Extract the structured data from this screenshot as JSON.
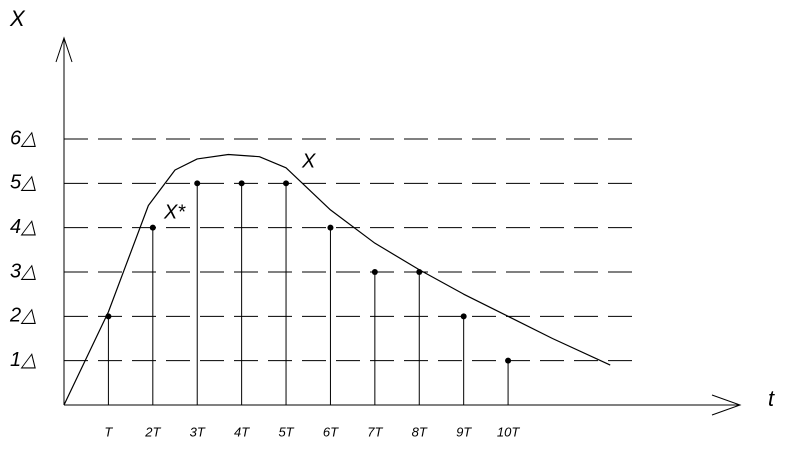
{
  "chart_data": {
    "type": "stem",
    "x_label": "t",
    "y_label": "X",
    "xlim": [
      0,
      15.2
    ],
    "ylim": [
      0,
      8.3
    ],
    "xticks": [
      {
        "value": 1,
        "label": "T"
      },
      {
        "value": 2,
        "label": "2T"
      },
      {
        "value": 3,
        "label": "3T"
      },
      {
        "value": 4,
        "label": "4T"
      },
      {
        "value": 5,
        "label": "5T"
      },
      {
        "value": 6,
        "label": "6T"
      },
      {
        "value": 7,
        "label": "7T"
      },
      {
        "value": 8,
        "label": "8T"
      },
      {
        "value": 9,
        "label": "9T"
      },
      {
        "value": 10,
        "label": "10T"
      }
    ],
    "yticks": [
      {
        "value": 1,
        "label": "1△"
      },
      {
        "value": 2,
        "label": "2△"
      },
      {
        "value": 3,
        "label": "3△"
      },
      {
        "value": 4,
        "label": "4△"
      },
      {
        "value": 5,
        "label": "5△"
      },
      {
        "value": 6,
        "label": "6△"
      }
    ],
    "grid": true,
    "series": [
      {
        "name": "X",
        "type": "line",
        "color": "#000000",
        "x": [
          0,
          1,
          1.9,
          2.5,
          3,
          3.7,
          4.4,
          5,
          6,
          7,
          8,
          9,
          10,
          11,
          12.3
        ],
        "values": [
          0,
          2.1,
          4.5,
          5.3,
          5.55,
          5.65,
          5.6,
          5.35,
          4.4,
          3.65,
          3.05,
          2.5,
          2.0,
          1.5,
          0.9
        ]
      },
      {
        "name": "X*",
        "type": "stem",
        "color": "#000000",
        "x": [
          1,
          2,
          3,
          4,
          5,
          6,
          7,
          8,
          9,
          10
        ],
        "values": [
          2,
          4,
          5,
          5,
          5,
          4,
          3,
          3,
          2,
          1
        ]
      }
    ]
  }
}
